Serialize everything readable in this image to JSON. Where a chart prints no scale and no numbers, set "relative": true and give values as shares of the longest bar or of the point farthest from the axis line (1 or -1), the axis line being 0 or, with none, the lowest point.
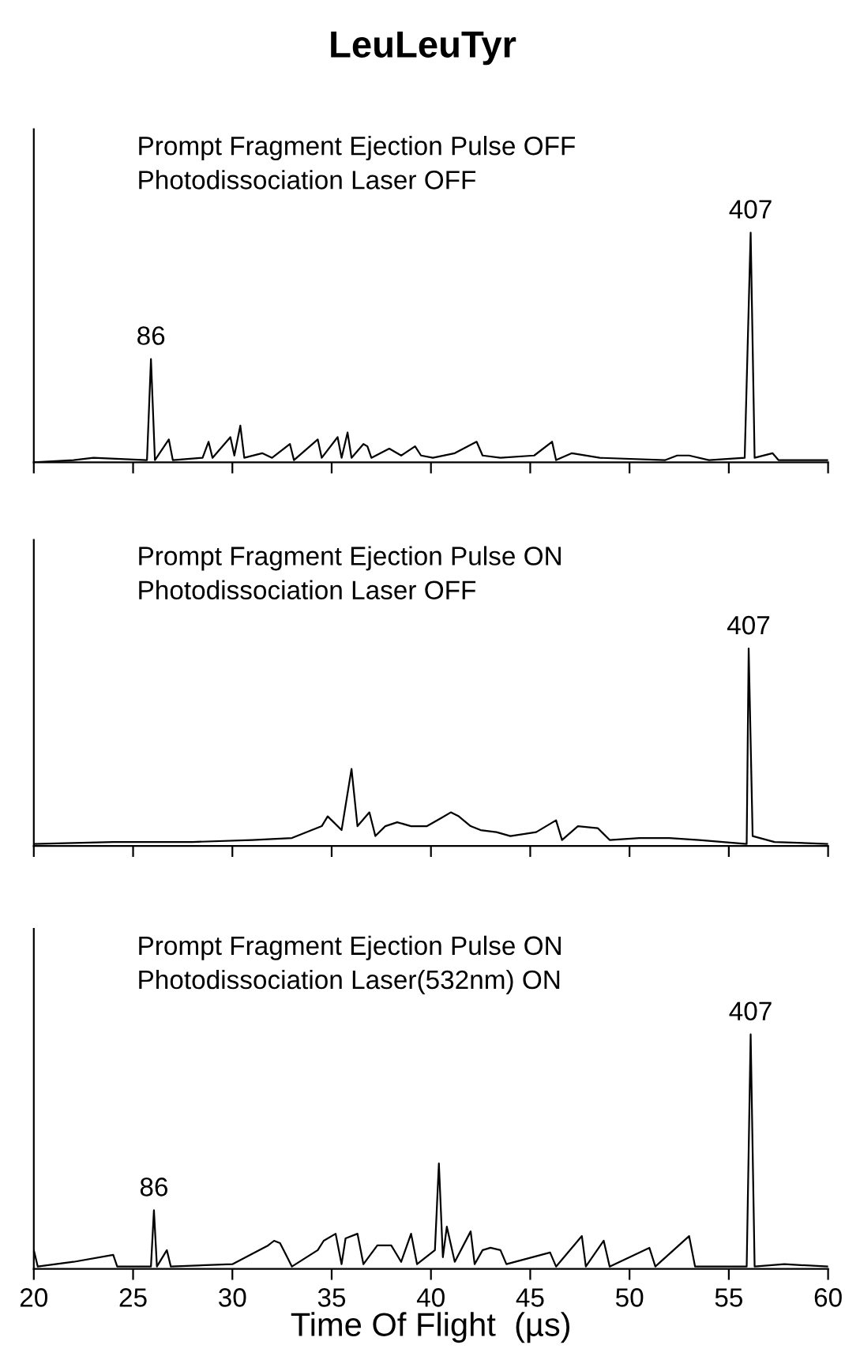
{
  "chart_data": [
    {
      "type": "line",
      "title": "LeuLeuTyr",
      "relative": true,
      "xlim": [
        20,
        60
      ],
      "xticks": [
        20,
        25,
        30,
        35,
        40,
        45,
        50,
        55,
        60
      ],
      "tick_labels": false,
      "annotations": [
        "Prompt Fragment Ejection Pulse OFF\nPhotodissociation Laser OFF",
        {
          "text": "86",
          "x": 25.9,
          "y": 0.45
        },
        {
          "text": "407",
          "x": 56.1,
          "y": 1.0
        }
      ],
      "series": [
        {
          "color": "#000000",
          "x": [
            20,
            22,
            23,
            25.7,
            25.9,
            26.1,
            26.8,
            27,
            28.5,
            28.8,
            29,
            29.9,
            30.1,
            30.4,
            30.6,
            31.5,
            32,
            32.9,
            33.1,
            34.3,
            34.5,
            35.3,
            35.5,
            35.8,
            36,
            36.6,
            36.8,
            37,
            37.9,
            38.5,
            39.2,
            39.5,
            40.1,
            41.2,
            42.3,
            42.6,
            43.5,
            45.2,
            46.1,
            46.3,
            47.1,
            48.5,
            51.8,
            52.4,
            53,
            54,
            55.8,
            56.1,
            56.3,
            57.2,
            57.5,
            60
          ],
          "values": [
            0,
            0.01,
            0.02,
            0.01,
            0.45,
            0.01,
            0.1,
            0.01,
            0.02,
            0.09,
            0.02,
            0.11,
            0.03,
            0.16,
            0.02,
            0.04,
            0.02,
            0.08,
            0.01,
            0.1,
            0.02,
            0.11,
            0.02,
            0.13,
            0.02,
            0.08,
            0.07,
            0.02,
            0.06,
            0.03,
            0.07,
            0.03,
            0.02,
            0.04,
            0.09,
            0.03,
            0.02,
            0.03,
            0.09,
            0.01,
            0.04,
            0.02,
            0.01,
            0.03,
            0.03,
            0.01,
            0.02,
            1.0,
            0.02,
            0.04,
            0.01,
            0.01
          ]
        }
      ]
    },
    {
      "type": "line",
      "relative": true,
      "xlim": [
        20,
        60
      ],
      "xticks": [
        20,
        25,
        30,
        35,
        40,
        45,
        50,
        55,
        60
      ],
      "tick_labels": false,
      "annotations": [
        "Prompt Fragment Ejection Pulse ON\nPhotodissociation Laser OFF",
        {
          "text": "407",
          "x": 56.0,
          "y": 1.0
        }
      ],
      "series": [
        {
          "color": "#000000",
          "x": [
            20,
            24,
            28,
            31,
            33,
            34.5,
            34.8,
            35.5,
            36,
            36.3,
            36.9,
            37.2,
            37.7,
            38.3,
            39,
            39.8,
            40.5,
            41,
            41.4,
            42,
            42.5,
            43.3,
            44,
            45.3,
            46.3,
            46.6,
            47.4,
            48.4,
            49,
            50.5,
            52,
            53.5,
            55.9,
            56.0,
            56.2,
            57.3,
            60
          ],
          "values": [
            0.01,
            0.02,
            0.02,
            0.03,
            0.04,
            0.1,
            0.15,
            0.08,
            0.39,
            0.1,
            0.17,
            0.05,
            0.1,
            0.12,
            0.1,
            0.1,
            0.14,
            0.17,
            0.15,
            0.1,
            0.08,
            0.07,
            0.05,
            0.07,
            0.13,
            0.03,
            0.1,
            0.09,
            0.03,
            0.04,
            0.04,
            0.03,
            0.01,
            1.0,
            0.05,
            0.02,
            0.01
          ]
        }
      ]
    },
    {
      "type": "line",
      "relative": true,
      "xlabel": "Time Of Flight  (µs)",
      "xlim": [
        20,
        60
      ],
      "xticks": [
        20,
        25,
        30,
        35,
        40,
        45,
        50,
        55,
        60
      ],
      "tick_labels": "x",
      "annotations": [
        "Prompt Fragment Ejection Pulse ON\nPhotodissociation Laser(532nm) ON",
        {
          "text": "86",
          "x": 26.05,
          "y": 0.25
        },
        {
          "text": "407",
          "x": 56.1,
          "y": 1.0
        }
      ],
      "series": [
        {
          "color": "#000000",
          "x": [
            20,
            20.2,
            22,
            24,
            24.2,
            25.9,
            26.05,
            26.2,
            26.7,
            26.9,
            30,
            31.8,
            32.1,
            32.4,
            32.7,
            33,
            34.3,
            34.6,
            35.2,
            35.5,
            35.7,
            36.3,
            36.6,
            37.3,
            38,
            38.5,
            39,
            39.3,
            40.2,
            40.4,
            40.6,
            40.8,
            41.2,
            42,
            42.2,
            42.6,
            43,
            43.5,
            43.8,
            46,
            46.3,
            47.6,
            47.8,
            48.7,
            49,
            51,
            51.3,
            53,
            53.3,
            55.9,
            56.1,
            56.3,
            57.8,
            60
          ],
          "values": [
            0.08,
            0.01,
            0.03,
            0.06,
            0.01,
            0.01,
            0.25,
            0.01,
            0.08,
            0.01,
            0.02,
            0.1,
            0.12,
            0.11,
            0.06,
            0.01,
            0.08,
            0.12,
            0.15,
            0.02,
            0.13,
            0.15,
            0.02,
            0.1,
            0.1,
            0.03,
            0.15,
            0.02,
            0.08,
            0.45,
            0.05,
            0.18,
            0.03,
            0.16,
            0.02,
            0.08,
            0.09,
            0.08,
            0.02,
            0.07,
            0.01,
            0.14,
            0.01,
            0.12,
            0.01,
            0.09,
            0.01,
            0.14,
            0.01,
            0.01,
            1.0,
            0.01,
            0.02,
            0.01
          ]
        }
      ]
    }
  ]
}
